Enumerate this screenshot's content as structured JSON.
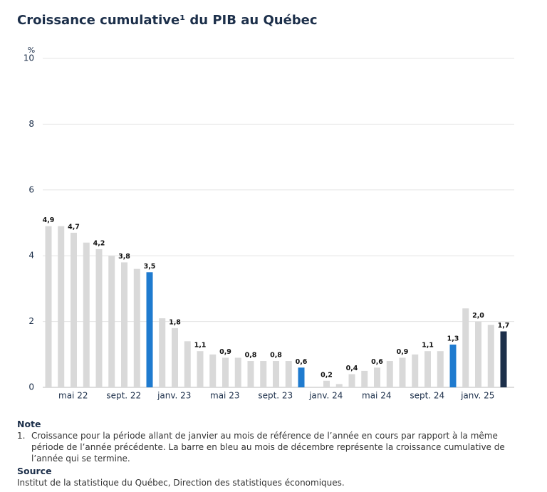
{
  "chart_data": {
    "type": "bar",
    "title": "Croissance cumulative¹ du PIB au Québec",
    "y_unit": "%",
    "categories": [
      null,
      "mai 22",
      null,
      null,
      null,
      "sept. 22",
      null,
      null,
      null,
      "janv. 23",
      null,
      null,
      null,
      "mai 23",
      null,
      null,
      null,
      "sept. 23",
      null,
      null,
      null,
      "janv. 24",
      null,
      null,
      null,
      "mai 24",
      null,
      null,
      null,
      "sept. 24",
      null,
      null,
      null,
      "janv. 25",
      null,
      null,
      null
    ],
    "values": [
      4.9,
      4.9,
      4.7,
      4.4,
      4.2,
      4.0,
      3.8,
      3.6,
      3.5,
      2.1,
      1.8,
      1.4,
      1.1,
      1.0,
      0.9,
      0.9,
      0.8,
      0.8,
      0.8,
      0.8,
      0.6,
      0.0,
      0.2,
      0.1,
      0.4,
      0.5,
      0.6,
      0.8,
      0.9,
      1.0,
      1.1,
      1.1,
      1.3,
      2.4,
      2.0,
      1.9,
      1.7
    ],
    "value_labels": [
      "4,9",
      null,
      "4,7",
      null,
      "4,2",
      null,
      "3,8",
      null,
      "3,5",
      null,
      "1,8",
      null,
      "1,1",
      null,
      "0,9",
      null,
      "0,8",
      null,
      "0,8",
      null,
      "0,6",
      null,
      "0,2",
      null,
      "0,4",
      null,
      "0,6",
      null,
      "0,9",
      null,
      "1,1",
      null,
      "1,3",
      null,
      "2,0",
      null,
      "1,7"
    ],
    "colors": [
      "#d9d9d9",
      "#d9d9d9",
      "#d9d9d9",
      "#d9d9d9",
      "#d9d9d9",
      "#d9d9d9",
      "#d9d9d9",
      "#d9d9d9",
      "#1f7bcf",
      "#d9d9d9",
      "#d9d9d9",
      "#d9d9d9",
      "#d9d9d9",
      "#d9d9d9",
      "#d9d9d9",
      "#d9d9d9",
      "#d9d9d9",
      "#d9d9d9",
      "#d9d9d9",
      "#d9d9d9",
      "#1f7bcf",
      "#d9d9d9",
      "#d9d9d9",
      "#d9d9d9",
      "#d9d9d9",
      "#d9d9d9",
      "#d9d9d9",
      "#d9d9d9",
      "#d9d9d9",
      "#d9d9d9",
      "#d9d9d9",
      "#d9d9d9",
      "#1f7bcf",
      "#d9d9d9",
      "#d9d9d9",
      "#d9d9d9",
      "#1c2f4a"
    ],
    "ylim": [
      0,
      10
    ],
    "yticks": [
      0,
      2,
      4,
      6,
      8,
      10
    ],
    "grid": true
  },
  "notes": {
    "note_heading": "Note",
    "note_number": "1.",
    "note_text": "Croissance pour la période allant de janvier au mois de référence de l’année en cours par rapport à la même période de l’année précédente. La barre en bleu au mois de décembre représente la croissance cumulative de l’année qui se termine.",
    "source_heading": "Source",
    "source_text": "Institut de la statistique du Québec, Direction des statistiques économiques."
  }
}
